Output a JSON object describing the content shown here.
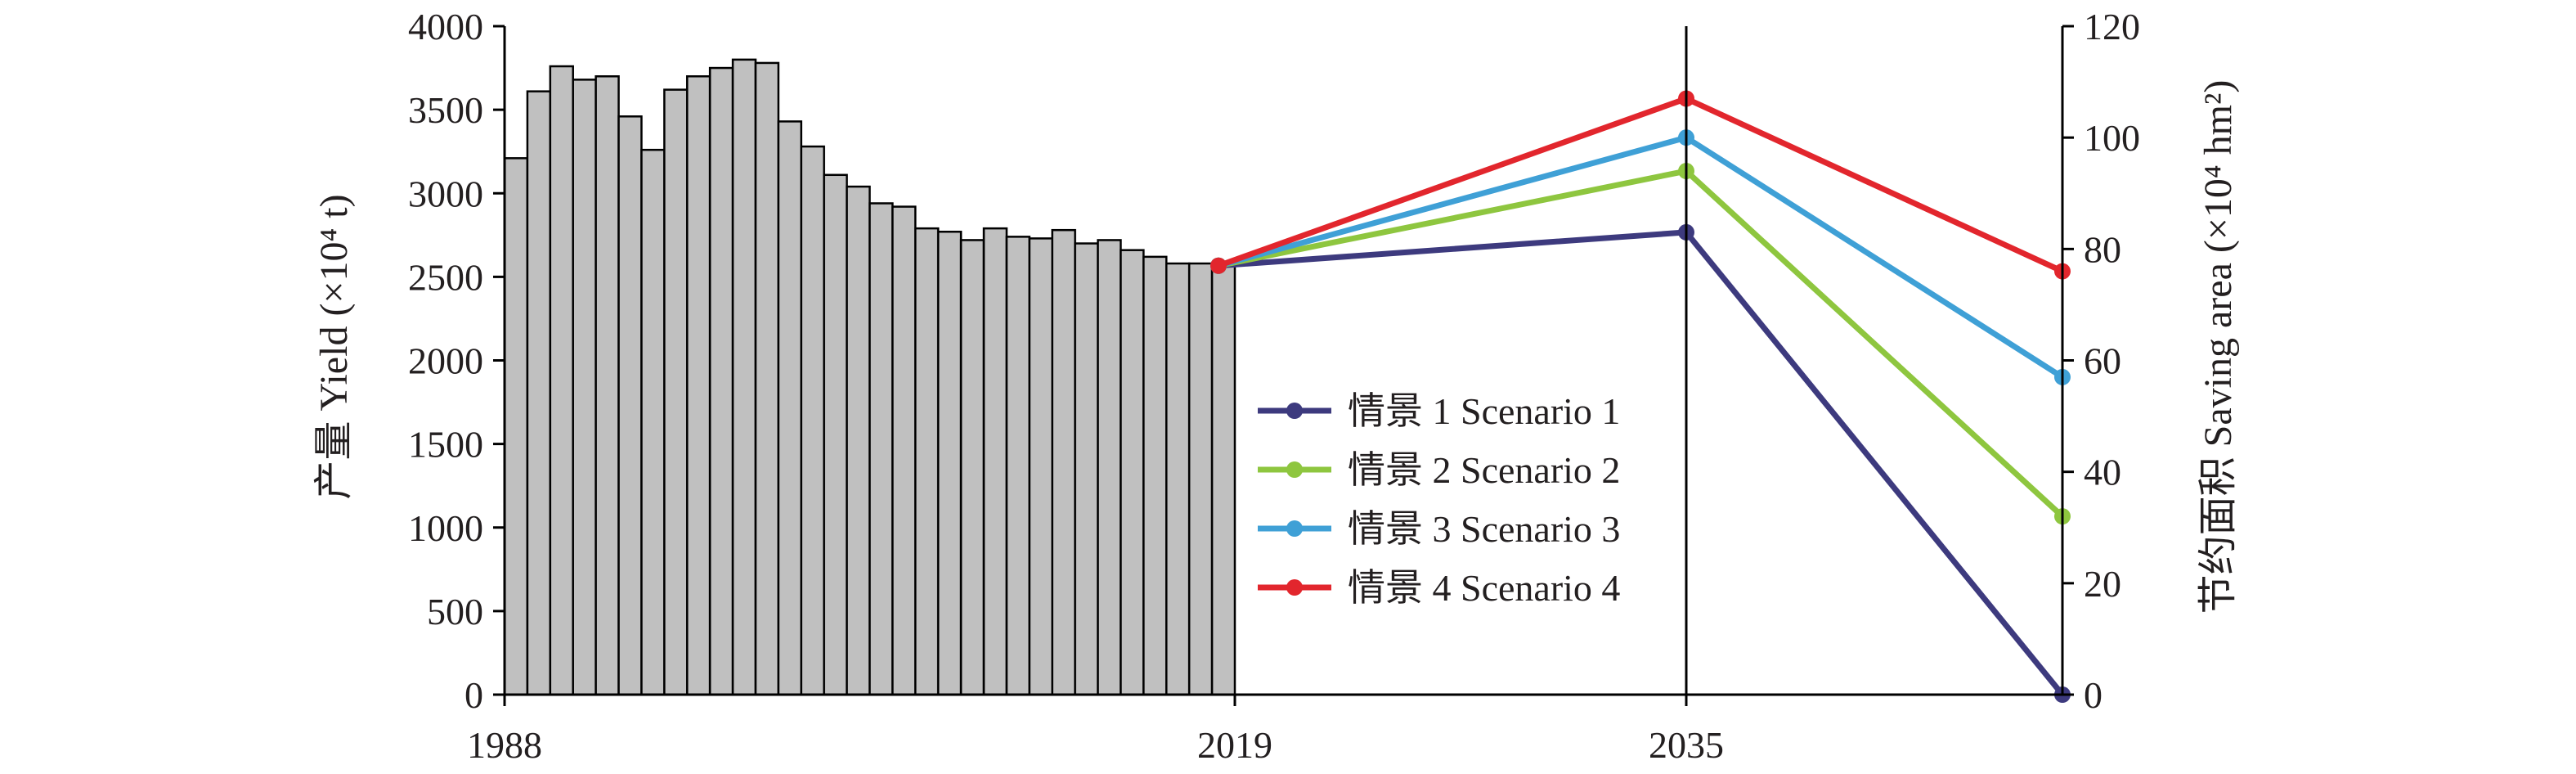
{
  "chart_data": {
    "type": "bar+line",
    "left_axis": {
      "label_cn": "产量",
      "label_en": "Yield (×10⁴ t)",
      "ylim": [
        0,
        4000
      ],
      "ticks": [
        "0",
        "500",
        "1000",
        "1500",
        "2000",
        "2500",
        "3000",
        "3500",
        "4000"
      ]
    },
    "right_axis": {
      "label_cn": "节约面积",
      "label_en": "Saving area (×10⁴ hm²)",
      "ylim": [
        0,
        120
      ],
      "ticks": [
        "0",
        "20",
        "40",
        "60",
        "80",
        "100",
        "120"
      ]
    },
    "x_ticks": [
      "1988",
      "2019",
      "2035"
    ],
    "bars": {
      "years": [
        1988,
        1989,
        1990,
        1991,
        1992,
        1993,
        1994,
        1995,
        1996,
        1997,
        1998,
        1999,
        2000,
        2001,
        2002,
        2003,
        2004,
        2005,
        2006,
        2007,
        2008,
        2009,
        2010,
        2011,
        2012,
        2013,
        2014,
        2015,
        2016,
        2017,
        2018,
        2019
      ],
      "values": [
        3210,
        3610,
        3760,
        3680,
        3700,
        3460,
        3260,
        3620,
        3700,
        3750,
        3800,
        3780,
        3430,
        3280,
        3110,
        3040,
        2940,
        2920,
        2790,
        2770,
        2720,
        2790,
        2740,
        2730,
        2780,
        2700,
        2720,
        2660,
        2620,
        2580,
        2580,
        2570
      ],
      "color": "#c0c0c0"
    },
    "series": [
      {
        "name": "情景 1 Scenario 1",
        "color": "#3d3a7e",
        "values": [
          77,
          83,
          0
        ]
      },
      {
        "name": "情景 2 Scenario 2",
        "color": "#8ec63f",
        "values": [
          77,
          94,
          32
        ]
      },
      {
        "name": "情景 3 Scenario 3",
        "color": "#3fa0d6",
        "values": [
          77,
          100,
          57
        ]
      },
      {
        "name": "情景 4 Scenario 4",
        "color": "#e2262d",
        "values": [
          77,
          107,
          76
        ]
      }
    ],
    "legend_placement": "center",
    "grid": false
  }
}
